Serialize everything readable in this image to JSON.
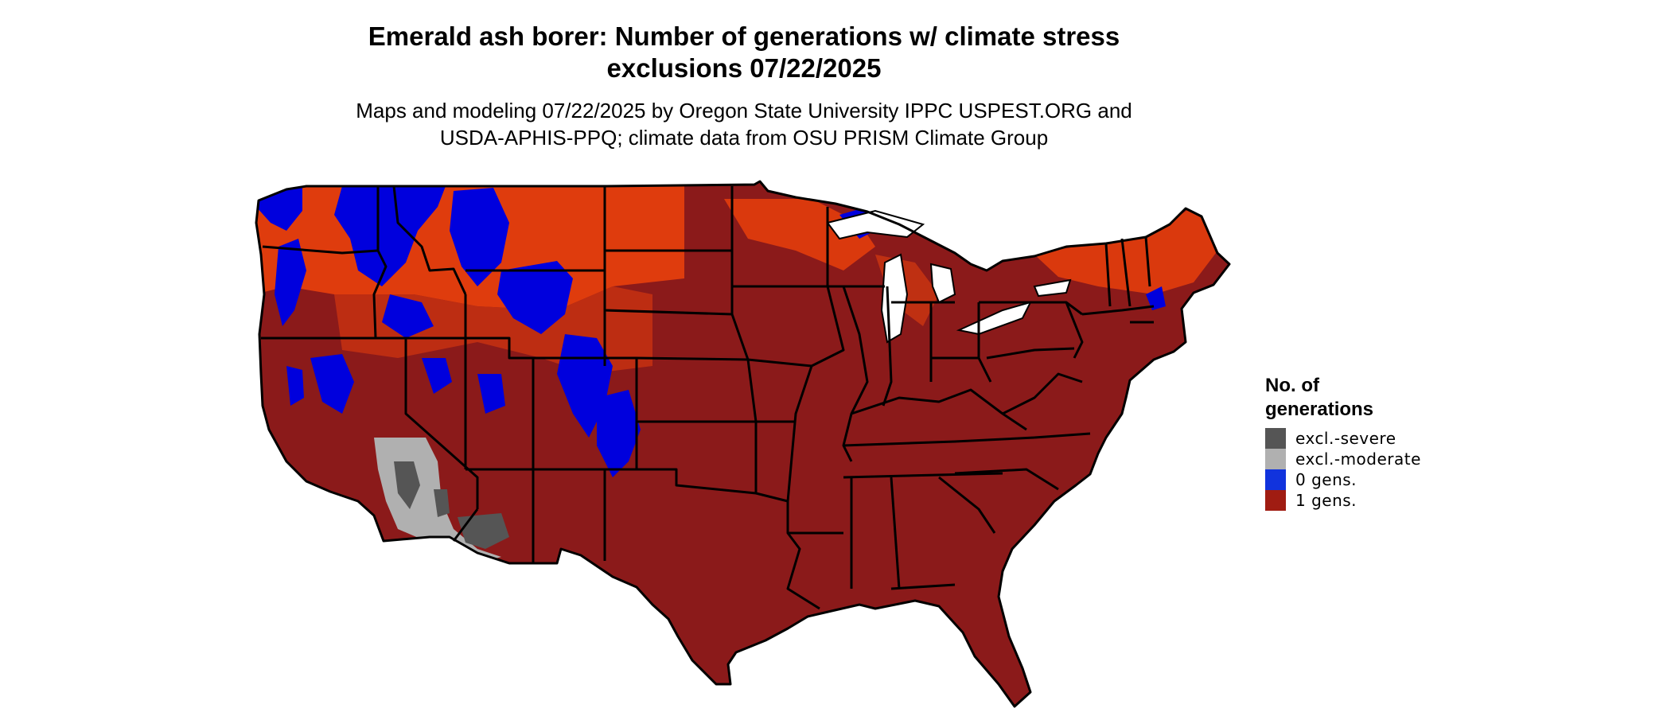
{
  "title": {
    "line1": "Emerald ash borer: Number of generations w/ climate stress",
    "line2": "exclusions 07/22/2025"
  },
  "subtitle": {
    "line1": "Maps and modeling 07/22/2025 by Oregon State University IPPC USPEST.ORG and",
    "line2": "USDA-APHIS-PPQ; climate data from OSU PRISM Climate Group"
  },
  "legend": {
    "title_line1": "No. of",
    "title_line2": "generations",
    "items": [
      {
        "label": "excl.-severe",
        "color": "#555555"
      },
      {
        "label": "excl.-moderate",
        "color": "#b0b0b0"
      },
      {
        "label": "0 gens.",
        "color": "#1133dd"
      },
      {
        "label": "1 gens.",
        "color": "#a01c12"
      }
    ]
  },
  "map_colors": {
    "one_gen_main": "#8b1a1a",
    "one_gen_light": "#e8400c",
    "zero_gens": "#0000dd",
    "excl_severe": "#555555",
    "excl_moderate": "#b0b0b0",
    "state_border": "#000000"
  }
}
